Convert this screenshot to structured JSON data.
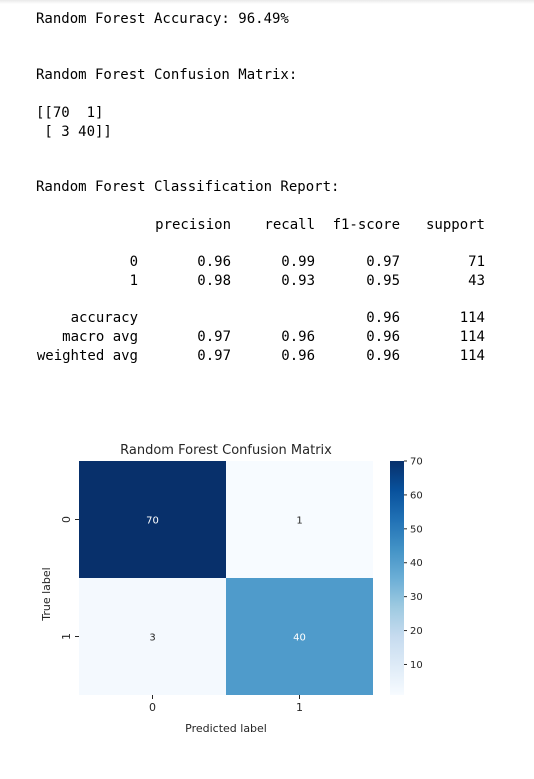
{
  "output": {
    "accuracy_line": "Random Forest Accuracy: 96.49%",
    "confusion_title": "Random Forest Confusion Matrix:",
    "matrix_row1": "[[70  1]",
    "matrix_row2": " [ 3 40]]",
    "report_title": "Random Forest Classification Report:"
  },
  "report": {
    "headers": [
      "precision",
      "recall",
      "f1-score",
      "support"
    ],
    "rows": [
      {
        "label": "0",
        "precision": "0.96",
        "recall": "0.99",
        "f1": "0.97",
        "support": "71"
      },
      {
        "label": "1",
        "precision": "0.98",
        "recall": "0.93",
        "f1": "0.95",
        "support": "43"
      },
      {
        "label": "accuracy",
        "precision": "",
        "recall": "",
        "f1": "0.96",
        "support": "114"
      },
      {
        "label": "macro avg",
        "precision": "0.97",
        "recall": "0.96",
        "f1": "0.96",
        "support": "114"
      },
      {
        "label": "weighted avg",
        "precision": "0.97",
        "recall": "0.96",
        "f1": "0.96",
        "support": "114"
      }
    ]
  },
  "chart_data": {
    "type": "heatmap",
    "title": "Random Forest Confusion Matrix",
    "xlabel": "Predicted label",
    "ylabel": "True label",
    "x_categories": [
      "0",
      "1"
    ],
    "y_categories": [
      "0",
      "1"
    ],
    "values": [
      [
        70,
        1
      ],
      [
        3,
        40
      ]
    ],
    "colormap": "Blues",
    "vmin": 1,
    "vmax": 70,
    "colorbar_ticks": [
      10,
      20,
      30,
      40,
      50,
      60,
      70
    ],
    "cell_colors": [
      [
        "#08306b",
        "#f7fbff"
      ],
      [
        "#f4f9fe",
        "#4f9bcb"
      ]
    ],
    "annotation_colors": [
      [
        "#ffffff",
        "#262626"
      ],
      [
        "#262626",
        "#ffffff"
      ]
    ]
  }
}
